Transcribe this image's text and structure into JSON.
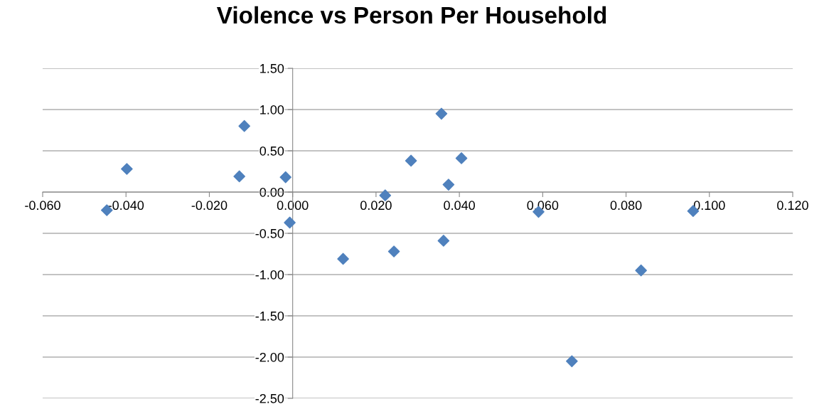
{
  "chart_data": {
    "type": "scatter",
    "title": "Violence vs Person Per Household",
    "x": [
      -0.0446,
      -0.0398,
      -0.0128,
      -0.0116,
      -0.0017,
      -0.0007,
      0.0121,
      0.0222,
      0.0243,
      0.0284,
      0.0357,
      0.0362,
      0.0374,
      0.0405,
      0.059,
      0.067,
      0.0836,
      0.0961
    ],
    "values": [
      -0.22,
      0.28,
      0.19,
      0.8,
      0.18,
      -0.37,
      -0.81,
      -0.04,
      -0.72,
      0.38,
      0.95,
      -0.59,
      0.09,
      0.41,
      -0.24,
      -2.05,
      -0.95,
      -0.23
    ],
    "color": "#4f81bd",
    "marker": "diamond",
    "grid": "y",
    "xlim": [
      -0.06,
      0.12
    ],
    "xticks": [
      {
        "value": -0.06,
        "label": "-0.060"
      },
      {
        "value": -0.04,
        "label": "-0.040"
      },
      {
        "value": -0.02,
        "label": "-0.020"
      },
      {
        "value": 0,
        "label": "0.000"
      },
      {
        "value": 0.02,
        "label": "0.020"
      },
      {
        "value": 0.04,
        "label": "0.040"
      },
      {
        "value": 0.06,
        "label": "0.060"
      },
      {
        "value": 0.08,
        "label": "0.080"
      },
      {
        "value": 0.1,
        "label": "0.100"
      },
      {
        "value": 0.12,
        "label": "0.120"
      }
    ],
    "ylim": [
      -2.5,
      1.5
    ],
    "yticks": [
      {
        "value": -2.5,
        "label": "-2.50"
      },
      {
        "value": -2,
        "label": "-2.00"
      },
      {
        "value": -1.5,
        "label": "-1.50"
      },
      {
        "value": -1,
        "label": "-1.00"
      },
      {
        "value": -0.5,
        "label": "-0.50"
      },
      {
        "value": 0,
        "label": "0.00"
      },
      {
        "value": 0.5,
        "label": "0.50"
      },
      {
        "value": 1,
        "label": "1.00"
      },
      {
        "value": 1.5,
        "label": "1.50"
      }
    ]
  }
}
